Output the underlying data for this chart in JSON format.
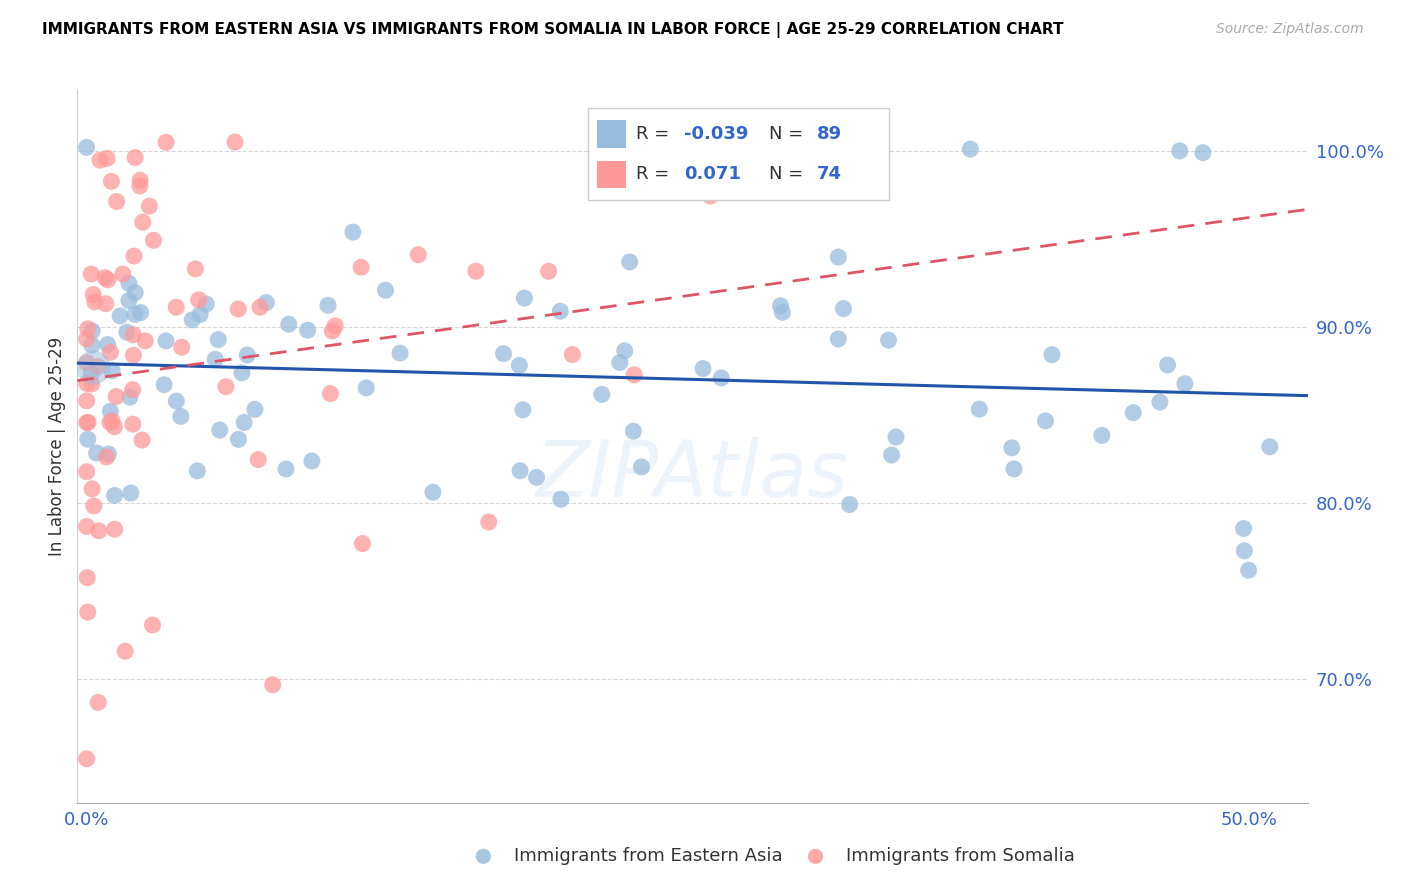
{
  "title": "IMMIGRANTS FROM EASTERN ASIA VS IMMIGRANTS FROM SOMALIA IN LABOR FORCE | AGE 25-29 CORRELATION CHART",
  "source": "Source: ZipAtlas.com",
  "ylabel": "In Labor Force | Age 25-29",
  "ymin": 0.63,
  "ymax": 1.035,
  "xmin": -0.004,
  "xmax": 0.525,
  "color_blue": "#99BBDD",
  "color_pink": "#FF9999",
  "color_trend_blue": "#2255AA",
  "color_trend_pink": "#DD5566",
  "watermark": "ZIPAtlas"
}
